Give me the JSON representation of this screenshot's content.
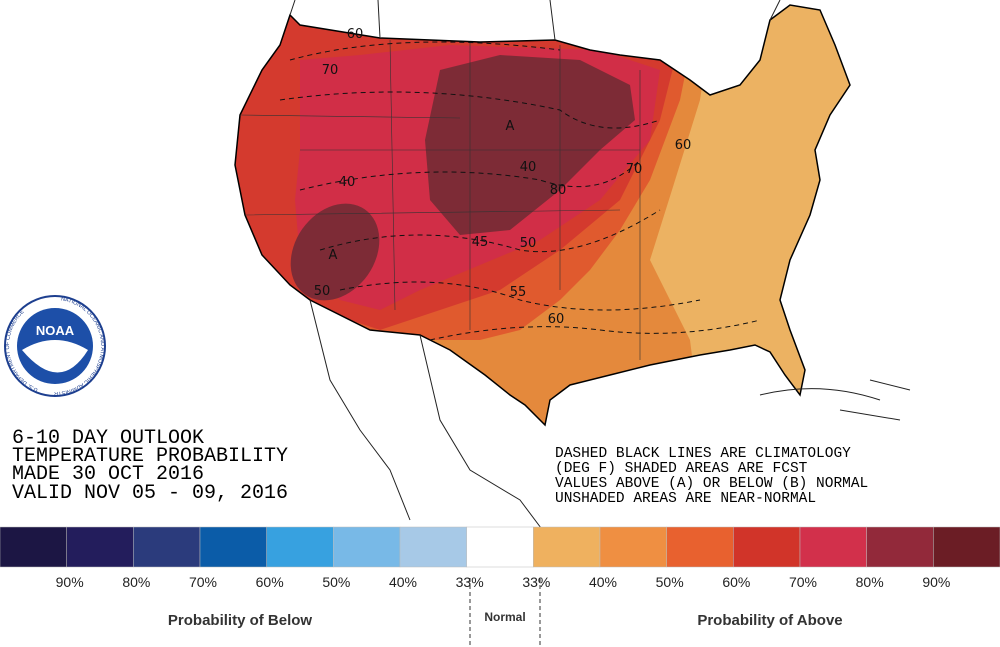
{
  "outlook": {
    "lines": [
      "6-10 DAY OUTLOOK",
      "TEMPERATURE PROBABILITY",
      "MADE  30 OCT 2016",
      "VALID  NOV 05 - 09, 2016"
    ]
  },
  "notes": {
    "lines": [
      "DASHED BLACK LINES ARE CLIMATOLOGY",
      "(DEG F) SHADED AREAS ARE FCST",
      "VALUES ABOVE (A) OR BELOW (B) NORMAL",
      "UNSHADED AREAS ARE NEAR-NORMAL"
    ]
  },
  "logo": {
    "name": "NOAA",
    "agency": "NATIONAL OCEANIC AND ATMOSPHERIC ADMINISTRATION",
    "department": "U.S. DEPARTMENT OF COMMERCE"
  },
  "map_labels": [
    "60",
    "70",
    "A",
    "40",
    "80",
    "A",
    "40",
    "45",
    "50",
    "55",
    "60",
    "50",
    "70",
    "60"
  ],
  "legend": {
    "colors": [
      "#1c1644",
      "#231d5c",
      "#2b3b7c",
      "#0b5ca8",
      "#37a1e0",
      "#78b9e7",
      "#a7c9e7",
      "#ffffff",
      "#efb15f",
      "#ef8f42",
      "#e8612f",
      "#d13429",
      "#d2304b",
      "#92293a",
      "#6b1d25"
    ],
    "labels": [
      "90%",
      "80%",
      "70%",
      "60%",
      "50%",
      "40%",
      "33%",
      "33%",
      "40%",
      "50%",
      "60%",
      "70%",
      "80%",
      "90%"
    ],
    "below_title": "Probability of Below",
    "normal_title": "Normal",
    "above_title": "Probability of Above"
  }
}
